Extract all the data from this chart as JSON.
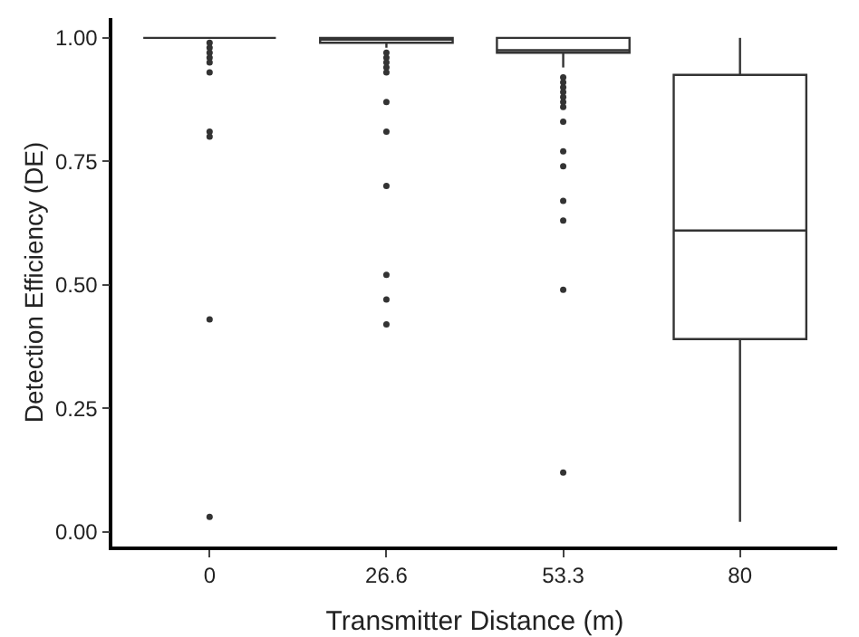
{
  "chart_data": {
    "type": "box",
    "xlabel": "Transmitter Distance (m)",
    "ylabel": "Detection Efficiency (DE)",
    "categories": [
      "0",
      "26.6",
      "53.3",
      "80"
    ],
    "boxes": [
      {
        "low": 1,
        "q1": 1,
        "median": 1,
        "q3": 1,
        "high": 1,
        "outliers": [
          0.99,
          0.98,
          0.97,
          0.96,
          0.95,
          0.93,
          0.81,
          0.8,
          0.43,
          0.03
        ]
      },
      {
        "low": 0.98,
        "q1": 0.99,
        "median": 1,
        "q3": 1,
        "high": 1,
        "outliers": [
          0.97,
          0.96,
          0.95,
          0.94,
          0.93,
          0.87,
          0.81,
          0.7,
          0.52,
          0.47,
          0.42
        ]
      },
      {
        "low": 0.94,
        "q1": 0.97,
        "median": 0.975,
        "q3": 1,
        "high": 1,
        "outliers": [
          0.92,
          0.91,
          0.9,
          0.89,
          0.88,
          0.87,
          0.86,
          0.83,
          0.77,
          0.74,
          0.67,
          0.63,
          0.49,
          0.12
        ]
      },
      {
        "low": 0.02,
        "q1": 0.39,
        "median": 0.61,
        "q3": 0.925,
        "high": 1
      }
    ],
    "color": "#333333",
    "ylim": [
      -0.03,
      1.04
    ],
    "yticks": [
      {
        "value": 0,
        "label": "0.00"
      },
      {
        "value": 0.25,
        "label": "0.25"
      },
      {
        "value": 0.5,
        "label": "0.50"
      },
      {
        "value": 0.75,
        "label": "0.75"
      },
      {
        "value": 1,
        "label": "1.00"
      }
    ]
  }
}
